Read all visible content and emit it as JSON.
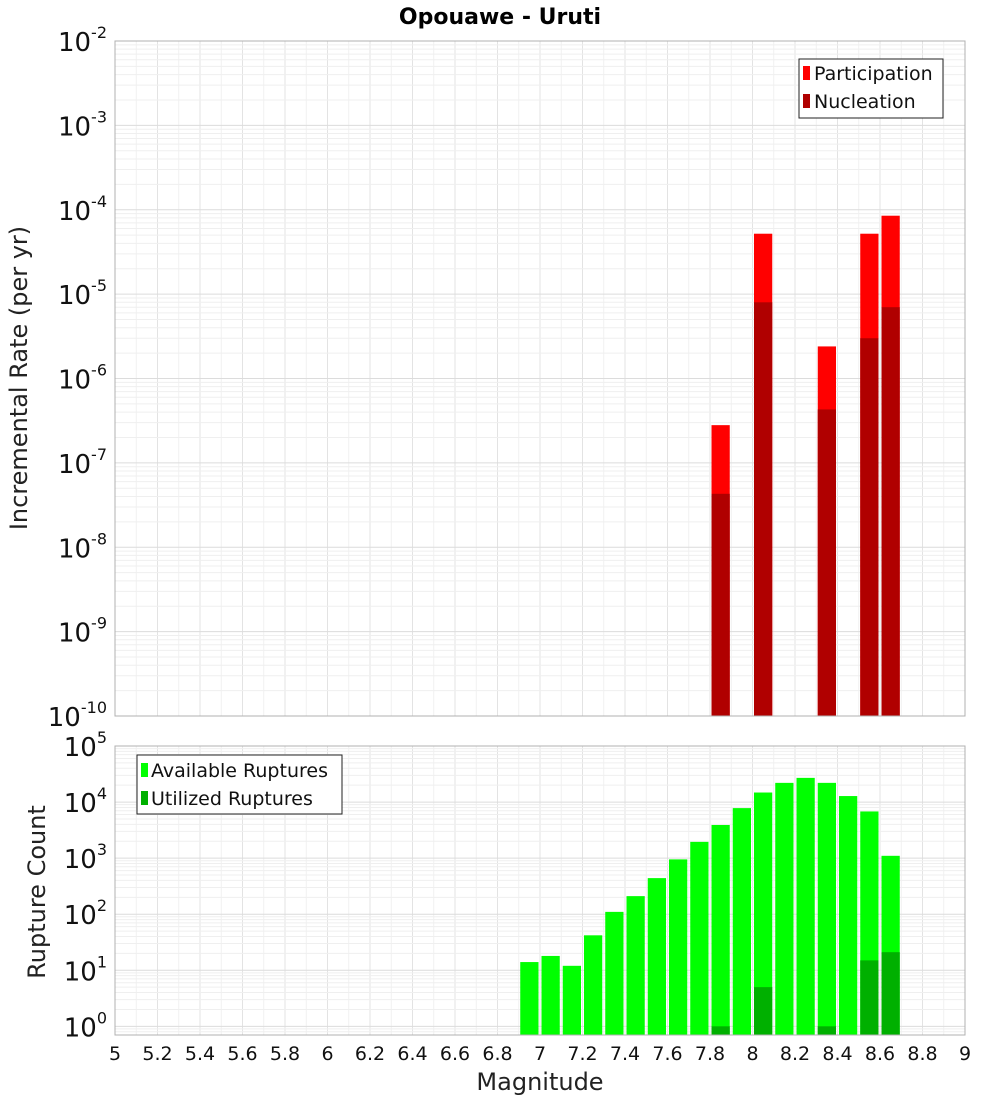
{
  "chart_data": [
    {
      "type": "bar",
      "title": "Opouawe - Uruti",
      "xlabel": "Magnitude",
      "ylabel": "Incremental Rate (per yr)",
      "yscale": "log",
      "xlim": [
        5,
        9
      ],
      "ylim": [
        1e-10,
        0.01
      ],
      "bin_width": 0.1,
      "x": [
        7.85,
        8.05,
        8.35,
        8.55,
        8.65
      ],
      "series": [
        {
          "name": "Participation",
          "color": "#ff0000",
          "values": [
            2.8e-07,
            5.2e-05,
            2.4e-06,
            5.2e-05,
            8.5e-05
          ]
        },
        {
          "name": "Nucleation",
          "color": "#b00000",
          "values": [
            4.3e-08,
            8e-06,
            4.3e-07,
            3e-06,
            7e-06
          ]
        }
      ],
      "legend": "top-right"
    },
    {
      "type": "bar",
      "xlabel": "Magnitude",
      "ylabel": "Rupture Count",
      "yscale": "log",
      "xlim": [
        5,
        9
      ],
      "ylim": [
        0.7,
        100000.0
      ],
      "bin_width": 0.1,
      "x": [
        6.95,
        7.05,
        7.15,
        7.25,
        7.35,
        7.45,
        7.55,
        7.65,
        7.75,
        7.85,
        7.95,
        8.05,
        8.15,
        8.25,
        8.35,
        8.45,
        8.55,
        8.65
      ],
      "series": [
        {
          "name": "Available Ruptures",
          "color": "#00ff00",
          "values": [
            14,
            18,
            12,
            42,
            110,
            210,
            440,
            950,
            1950,
            3900,
            7800,
            14800,
            22000,
            27000,
            22000,
            12800,
            6800,
            1100
          ]
        },
        {
          "name": "Utilized Ruptures",
          "color": "#00b000",
          "values": [
            0,
            0,
            0,
            0,
            0,
            0,
            0,
            0,
            0,
            1,
            0,
            5,
            0,
            0,
            1,
            0,
            15,
            21
          ]
        }
      ],
      "legend": "top-left"
    }
  ],
  "x_ticks": [
    "5",
    "5.2",
    "5.4",
    "5.6",
    "5.8",
    "6",
    "6.2",
    "6.4",
    "6.6",
    "6.8",
    "7",
    "7.2",
    "7.4",
    "7.6",
    "7.8",
    "8",
    "8.2",
    "8.4",
    "8.6",
    "8.8",
    "9"
  ],
  "top_y_ticks": [
    {
      "base": "10",
      "exp": "-2"
    },
    {
      "base": "10",
      "exp": "-3"
    },
    {
      "base": "10",
      "exp": "-4"
    },
    {
      "base": "10",
      "exp": "-5"
    },
    {
      "base": "10",
      "exp": "-6"
    },
    {
      "base": "10",
      "exp": "-7"
    },
    {
      "base": "10",
      "exp": "-8"
    },
    {
      "base": "10",
      "exp": "-9"
    },
    {
      "base": "10",
      "exp": "-10"
    }
  ],
  "bottom_y_ticks": [
    {
      "base": "10",
      "exp": "5"
    },
    {
      "base": "10",
      "exp": "4"
    },
    {
      "base": "10",
      "exp": "3"
    },
    {
      "base": "10",
      "exp": "2"
    },
    {
      "base": "10",
      "exp": "1"
    },
    {
      "base": "10",
      "exp": "0"
    }
  ]
}
